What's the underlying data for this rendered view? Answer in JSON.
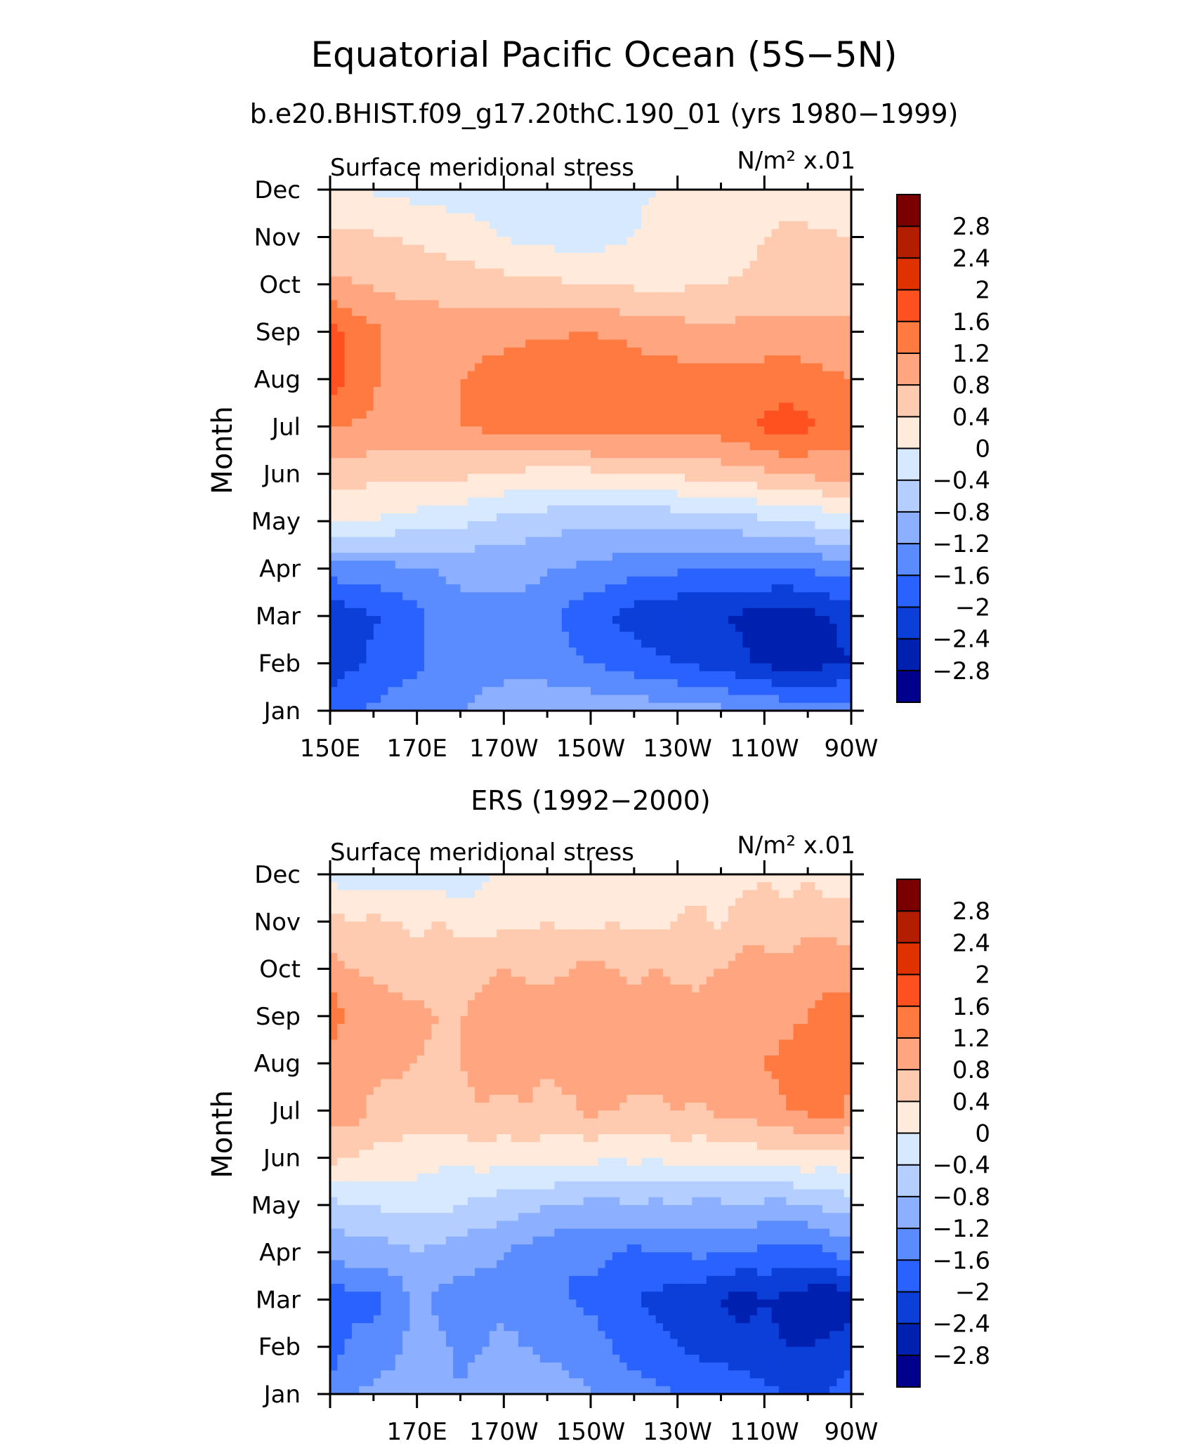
{
  "header": {
    "title": "Equatorial Pacific Ocean (5S−5N)",
    "subtitle": "b.e20.BHIST.f09_g17.20thC.190_01 (yrs 1980−1999)"
  },
  "colormap": {
    "levels": [
      "2.8",
      "2.4",
      "2",
      "1.6",
      "1.2",
      "0.8",
      "0.4",
      "0",
      "−0.4",
      "−0.8",
      "−1.2",
      "−1.6",
      "−2",
      "−2.4",
      "−2.8"
    ],
    "colors": [
      "#7a0000",
      "#b41e00",
      "#e03200",
      "#ff5020",
      "#ff7a40",
      "#ffa680",
      "#ffcbb0",
      "#ffeadb",
      "#d6e9ff",
      "#b4ceff",
      "#8cb0ff",
      "#5a8cff",
      "#2a62ff",
      "#0b3fd8",
      "#0020b0",
      "#00008c"
    ]
  },
  "chart_data": [
    {
      "type": "heatmap",
      "title": "",
      "left_label": "Surface meridional stress",
      "units_label": "N/m² x.01",
      "ylabel": "Month",
      "y_ticks": [
        "Jan",
        "Feb",
        "Mar",
        "Apr",
        "May",
        "Jun",
        "Jul",
        "Aug",
        "Sep",
        "Oct",
        "Nov",
        "Dec"
      ],
      "x_ticks": [
        "150E",
        "170E",
        "170W",
        "150W",
        "130W",
        "110W",
        "90W"
      ],
      "x_lon": [
        150,
        170,
        190,
        210,
        230,
        250,
        270
      ],
      "xlim": [
        150,
        270
      ],
      "grid_lon": [
        150,
        165,
        180,
        195,
        210,
        225,
        240,
        255,
        270
      ],
      "months": [
        "Jan",
        "Feb",
        "Mar",
        "Apr",
        "May",
        "Jun",
        "Jul",
        "Aug",
        "Sep",
        "Oct",
        "Nov",
        "Dec"
      ],
      "values": [
        [
          -1.8,
          -1.4,
          -1.2,
          -0.9,
          -0.9,
          -1.0,
          -1.1,
          -1.3,
          -1.4
        ],
        [
          -2.2,
          -1.8,
          -1.4,
          -1.3,
          -1.6,
          -1.9,
          -2.2,
          -2.6,
          -2.4
        ],
        [
          -2.3,
          -1.9,
          -1.3,
          -1.3,
          -1.9,
          -2.3,
          -2.4,
          -2.6,
          -2.3
        ],
        [
          -1.4,
          -1.3,
          -1.1,
          -1.1,
          -1.3,
          -1.5,
          -1.6,
          -1.6,
          -1.4
        ],
        [
          0.1,
          -0.1,
          -0.3,
          -0.6,
          -0.7,
          -0.7,
          -0.6,
          -0.4,
          -0.2
        ],
        [
          0.6,
          0.5,
          0.5,
          0.3,
          0.3,
          0.4,
          0.6,
          0.8,
          1.0
        ],
        [
          1.2,
          1.1,
          1.2,
          1.4,
          1.5,
          1.4,
          1.4,
          1.8,
          1.4
        ],
        [
          1.8,
          1.0,
          1.2,
          1.5,
          1.6,
          1.4,
          1.3,
          1.4,
          1.2
        ],
        [
          1.7,
          1.1,
          1.0,
          1.1,
          1.2,
          1.0,
          0.9,
          1.0,
          0.9
        ],
        [
          0.9,
          0.7,
          0.6,
          0.5,
          0.4,
          0.3,
          0.4,
          0.5,
          0.5
        ],
        [
          0.5,
          0.4,
          0.2,
          -0.1,
          -0.2,
          0.1,
          0.2,
          0.5,
          0.4
        ],
        [
          0.1,
          -0.1,
          -0.2,
          -0.2,
          -0.2,
          0.0,
          0.1,
          0.2,
          0.2
        ]
      ]
    },
    {
      "type": "heatmap",
      "title": "ERS (1992−2000)",
      "left_label": "Surface meridional stress",
      "units_label": "N/m² x.01",
      "ylabel": "Month",
      "y_ticks": [
        "Jan",
        "Feb",
        "Mar",
        "Apr",
        "May",
        "Jun",
        "Jul",
        "Aug",
        "Sep",
        "Oct",
        "Nov",
        "Dec"
      ],
      "x_ticks": [
        "170E",
        "170W",
        "150W",
        "130W",
        "110W",
        "90W"
      ],
      "x_lon": [
        170,
        190,
        210,
        230,
        250,
        270
      ],
      "xlim": [
        150,
        270
      ],
      "grid_lon": [
        150,
        155,
        160,
        165,
        170,
        175,
        180,
        185,
        190,
        195,
        200,
        205,
        210,
        215,
        220,
        225,
        230,
        235,
        240,
        245,
        250,
        255,
        260,
        265,
        270
      ],
      "months": [
        "Jan",
        "Feb",
        "Mar",
        "Apr",
        "May",
        "Jun",
        "Jul",
        "Aug",
        "Sep",
        "Oct",
        "Nov",
        "Dec"
      ],
      "values": [
        [
          -1.4,
          -1.2,
          -1.1,
          -1.0,
          -0.9,
          -1.0,
          -1.2,
          -1.0,
          -0.9,
          -1.0,
          -1.0,
          -1.1,
          -1.2,
          -1.3,
          -1.4,
          -1.5,
          -1.6,
          -1.7,
          -1.7,
          -1.8,
          -1.9,
          -2.0,
          -2.0,
          -2.0,
          -1.8
        ],
        [
          -1.9,
          -1.5,
          -1.5,
          -1.3,
          -1.0,
          -1.1,
          -1.3,
          -1.2,
          -1.1,
          -1.2,
          -1.3,
          -1.3,
          -1.4,
          -1.6,
          -1.8,
          -1.9,
          -2.0,
          -2.1,
          -2.2,
          -2.2,
          -2.3,
          -2.4,
          -2.4,
          -2.3,
          -2.2
        ],
        [
          -2.0,
          -1.7,
          -1.7,
          -1.5,
          -1.1,
          -1.3,
          -1.4,
          -1.4,
          -1.3,
          -1.4,
          -1.5,
          -1.6,
          -1.7,
          -1.8,
          -2.0,
          -2.1,
          -2.2,
          -2.3,
          -2.4,
          -2.6,
          -2.4,
          -2.5,
          -2.6,
          -2.8,
          -2.5
        ],
        [
          -1.1,
          -1.0,
          -1.0,
          -0.9,
          -0.8,
          -0.9,
          -1.0,
          -1.1,
          -1.2,
          -1.3,
          -1.4,
          -1.6,
          -1.5,
          -1.6,
          -1.7,
          -1.6,
          -1.6,
          -1.5,
          -1.6,
          -1.6,
          -1.7,
          -1.7,
          -1.8,
          -1.6,
          -1.4
        ],
        [
          -0.5,
          -0.4,
          -0.4,
          -0.3,
          -0.3,
          -0.3,
          -0.4,
          -0.5,
          -0.6,
          -0.7,
          -0.8,
          -0.8,
          -0.9,
          -0.9,
          -0.8,
          -0.9,
          -0.8,
          -0.9,
          -0.9,
          -0.8,
          -0.9,
          -0.9,
          -0.8,
          -0.7,
          -0.6
        ],
        [
          0.5,
          0.4,
          0.3,
          0.3,
          0.2,
          0.1,
          0.1,
          0.2,
          0.1,
          0.2,
          0.2,
          0.1,
          0.1,
          0.0,
          0.1,
          0.0,
          0.2,
          0.1,
          0.2,
          0.1,
          0.3,
          0.2,
          0.3,
          0.2,
          0.3
        ],
        [
          0.9,
          1.0,
          0.7,
          0.6,
          0.6,
          0.7,
          0.7,
          0.8,
          0.7,
          0.8,
          0.6,
          0.7,
          0.9,
          0.8,
          0.7,
          0.7,
          0.8,
          0.7,
          0.9,
          0.9,
          1.0,
          1.2,
          1.3,
          1.5,
          1.1
        ],
        [
          1.0,
          0.8,
          0.9,
          0.9,
          0.8,
          0.7,
          0.8,
          0.9,
          1.0,
          0.9,
          0.9,
          1.0,
          1.0,
          1.1,
          1.0,
          1.0,
          1.0,
          1.1,
          1.0,
          1.0,
          1.2,
          1.3,
          1.4,
          1.5,
          1.2
        ],
        [
          1.5,
          1.0,
          1.1,
          0.9,
          0.9,
          0.8,
          0.8,
          0.9,
          1.0,
          1.1,
          1.0,
          0.9,
          1.1,
          1.0,
          1.0,
          1.1,
          1.0,
          0.9,
          1.0,
          1.0,
          1.0,
          1.1,
          1.2,
          1.3,
          1.2
        ],
        [
          1.0,
          0.8,
          0.7,
          0.7,
          0.6,
          0.6,
          0.6,
          0.7,
          0.8,
          0.7,
          0.7,
          0.8,
          0.9,
          0.8,
          0.7,
          0.8,
          0.7,
          0.7,
          0.8,
          0.9,
          0.8,
          0.9,
          1.0,
          1.1,
          1.2
        ],
        [
          0.5,
          0.4,
          0.5,
          0.4,
          0.3,
          0.4,
          0.3,
          0.2,
          0.3,
          0.3,
          0.4,
          0.3,
          0.3,
          0.4,
          0.3,
          0.3,
          0.4,
          0.5,
          0.3,
          0.7,
          0.8,
          0.6,
          0.7,
          0.6,
          0.5
        ],
        [
          -0.1,
          -0.2,
          -0.3,
          -0.2,
          -0.1,
          -0.2,
          -0.3,
          -0.1,
          0.1,
          0.0,
          0.1,
          0.1,
          0.2,
          0.1,
          0.2,
          0.1,
          0.2,
          0.3,
          0.2,
          0.2,
          0.3,
          0.2,
          0.4,
          0.2,
          0.3
        ]
      ]
    }
  ]
}
